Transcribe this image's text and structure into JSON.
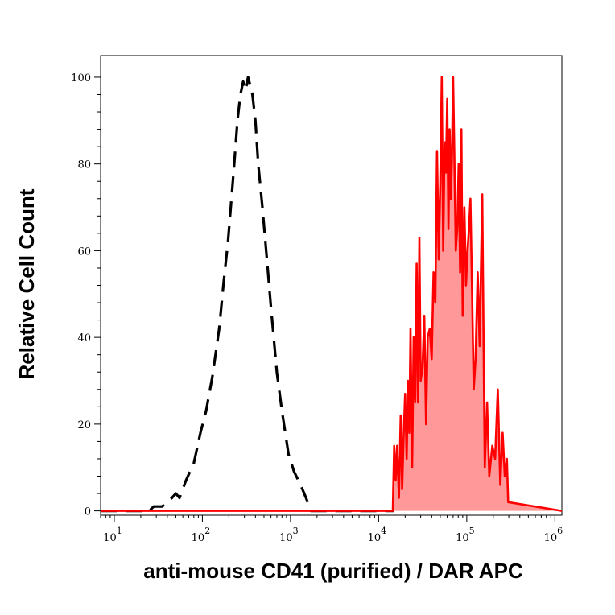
{
  "chart_data": {
    "type": "area",
    "title": "",
    "xlabel": "anti-mouse CD41 (purified) / DAR APC",
    "ylabel": "Relative Cell Count",
    "x_scale": "log",
    "xlim": [
      7,
      1200000
    ],
    "ylim": [
      -1,
      105
    ],
    "x_ticks": [
      {
        "value": 10,
        "base": "10",
        "exp": "1"
      },
      {
        "value": 100,
        "base": "10",
        "exp": "2"
      },
      {
        "value": 1000,
        "base": "10",
        "exp": "3"
      },
      {
        "value": 10000,
        "base": "10",
        "exp": "4"
      },
      {
        "value": 100000,
        "base": "10",
        "exp": "5"
      },
      {
        "value": 1000000,
        "base": "10",
        "exp": "6"
      }
    ],
    "y_ticks": [
      {
        "value": 0,
        "label": "0"
      },
      {
        "value": 20,
        "label": "20"
      },
      {
        "value": 40,
        "label": "40"
      },
      {
        "value": 60,
        "label": "60"
      },
      {
        "value": 80,
        "label": "80"
      },
      {
        "value": 100,
        "label": "100"
      }
    ],
    "grid": false,
    "legend": "none",
    "series": [
      {
        "style": "dashed-line",
        "color": "#000000",
        "x": [
          7,
          20,
          25,
          28,
          35,
          45,
          50,
          55,
          65,
          80,
          95,
          110,
          130,
          155,
          175,
          195,
          210,
          230,
          250,
          270,
          290,
          310,
          330,
          350,
          370,
          400,
          430,
          480,
          540,
          600,
          700,
          800,
          950,
          1100,
          1300,
          1500,
          1700,
          5000,
          15000
        ],
        "y": [
          0,
          0,
          0,
          1,
          1,
          3,
          4,
          3,
          7,
          11,
          18,
          23,
          31,
          42,
          53,
          62,
          70,
          80,
          90,
          96,
          99,
          97,
          100,
          98,
          96,
          90,
          80,
          70,
          58,
          47,
          32,
          23,
          13,
          9,
          6,
          3,
          0,
          0,
          0
        ]
      },
      {
        "style": "filled-area",
        "color": "#ff0000",
        "fill": "#ff9999",
        "x": [
          7,
          10000,
          14500,
          15000,
          15600,
          16200,
          17000,
          17800,
          18500,
          19200,
          20000,
          20800,
          21500,
          22300,
          23000,
          24000,
          25000,
          26000,
          27000,
          28000,
          29000,
          30000,
          31500,
          33000,
          34500,
          36000,
          38000,
          40000,
          42000,
          44000,
          46000,
          48000,
          50000,
          52000,
          54000,
          56000,
          58000,
          60000,
          62000,
          64000,
          66000,
          68000,
          70000,
          72000,
          75000,
          78000,
          81000,
          84000,
          87000,
          90000,
          94000,
          98000,
          102000,
          106000,
          110000,
          115000,
          120000,
          126000,
          133000,
          140000,
          150000,
          160000,
          170000,
          180000,
          195000,
          210000,
          225000,
          240000,
          255000,
          270000,
          285000,
          295000,
          1200000
        ],
        "y": [
          0,
          0,
          0,
          15,
          7,
          15,
          3,
          22,
          5,
          17,
          27,
          12,
          30,
          18,
          42,
          10,
          40,
          25,
          57,
          25,
          63,
          30,
          33,
          45,
          20,
          40,
          42,
          35,
          55,
          48,
          83,
          58,
          75,
          100,
          60,
          85,
          78,
          95,
          65,
          88,
          72,
          82,
          100,
          85,
          60,
          65,
          80,
          55,
          88,
          45,
          70,
          52,
          60,
          65,
          72,
          50,
          28,
          35,
          55,
          38,
          73,
          10,
          25,
          8,
          15,
          12,
          28,
          6,
          18,
          8,
          12,
          2,
          0
        ]
      }
    ]
  }
}
